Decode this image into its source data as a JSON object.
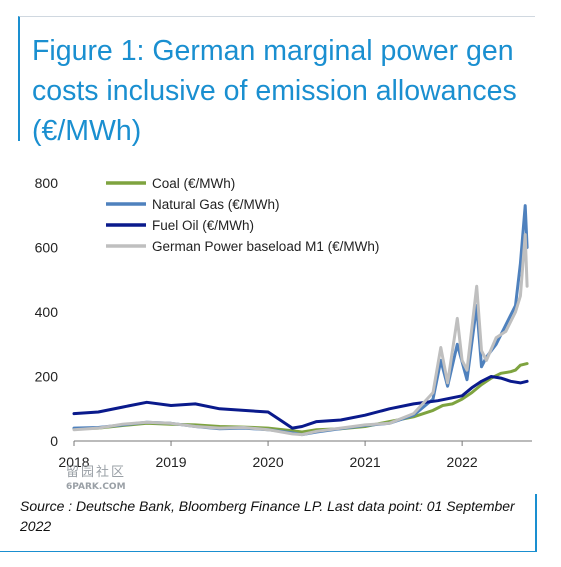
{
  "title": "Figure 1: German marginal power gen costs inclusive of emission allowances (€/MWh)",
  "source": "Source : Deutsche Bank, Bloomberg Finance LP. Last data point: 01 September 2022",
  "watermark": {
    "text": "留园社区",
    "sub": "6PARK.COM"
  },
  "colors": {
    "title": "#1a8fd0",
    "coal": "#7ea33f",
    "gas": "#4f81bd",
    "oil": "#0a1a8c",
    "power": "#bfbfbf"
  },
  "chart_data": {
    "type": "line",
    "title": "",
    "xlabel": "",
    "ylabel": "",
    "x_ticks": [
      "2018",
      "2019",
      "2020",
      "2021",
      "2022"
    ],
    "y_ticks": [
      "0",
      "200",
      "400",
      "600",
      "800"
    ],
    "xlim": [
      2018.0,
      2022.72
    ],
    "ylim": [
      0,
      800
    ],
    "grid": false,
    "legend_position": "top-left",
    "series": [
      {
        "name": "Coal (€/MWh)",
        "color": "#7ea33f",
        "x": [
          2018.0,
          2018.25,
          2018.5,
          2018.75,
          2019.0,
          2019.25,
          2019.5,
          2019.75,
          2020.0,
          2020.25,
          2020.35,
          2020.5,
          2020.75,
          2021.0,
          2021.25,
          2021.5,
          2021.7,
          2021.8,
          2021.9,
          2022.0,
          2022.1,
          2022.2,
          2022.3,
          2022.4,
          2022.5,
          2022.55,
          2022.6,
          2022.67
        ],
        "values": [
          38,
          40,
          48,
          55,
          52,
          50,
          45,
          43,
          40,
          32,
          28,
          35,
          38,
          45,
          60,
          75,
          95,
          110,
          115,
          130,
          150,
          175,
          195,
          210,
          215,
          220,
          235,
          240
        ]
      },
      {
        "name": "Natural Gas (€/MWh)",
        "color": "#4f81bd",
        "x": [
          2018.0,
          2018.25,
          2018.5,
          2018.75,
          2019.0,
          2019.25,
          2019.5,
          2019.75,
          2020.0,
          2020.25,
          2020.35,
          2020.5,
          2020.75,
          2021.0,
          2021.25,
          2021.5,
          2021.7,
          2021.78,
          2021.85,
          2021.95,
          2022.05,
          2022.15,
          2022.2,
          2022.25,
          2022.35,
          2022.45,
          2022.55,
          2022.6,
          2022.65,
          2022.67
        ],
        "values": [
          40,
          42,
          50,
          58,
          55,
          45,
          38,
          40,
          35,
          25,
          20,
          28,
          38,
          48,
          55,
          80,
          130,
          250,
          170,
          300,
          190,
          420,
          230,
          260,
          300,
          360,
          420,
          550,
          730,
          600
        ]
      },
      {
        "name": "Fuel Oil (€/MWh)",
        "color": "#0a1a8c",
        "x": [
          2018.0,
          2018.25,
          2018.5,
          2018.75,
          2019.0,
          2019.25,
          2019.5,
          2019.75,
          2020.0,
          2020.15,
          2020.25,
          2020.35,
          2020.5,
          2020.75,
          2021.0,
          2021.25,
          2021.5,
          2021.75,
          2022.0,
          2022.1,
          2022.2,
          2022.3,
          2022.4,
          2022.5,
          2022.6,
          2022.67
        ],
        "values": [
          85,
          90,
          105,
          120,
          110,
          115,
          100,
          95,
          90,
          60,
          40,
          45,
          60,
          65,
          80,
          100,
          115,
          125,
          140,
          165,
          185,
          200,
          195,
          185,
          180,
          185
        ]
      },
      {
        "name": "German Power baseload M1 (€/MWh)",
        "color": "#bfbfbf",
        "x": [
          2018.0,
          2018.25,
          2018.5,
          2018.75,
          2019.0,
          2019.25,
          2019.5,
          2019.75,
          2020.0,
          2020.25,
          2020.35,
          2020.5,
          2020.75,
          2021.0,
          2021.25,
          2021.5,
          2021.7,
          2021.78,
          2021.85,
          2021.95,
          2022.0,
          2022.05,
          2022.15,
          2022.2,
          2022.25,
          2022.35,
          2022.45,
          2022.55,
          2022.6,
          2022.65,
          2022.67
        ],
        "values": [
          35,
          40,
          52,
          58,
          55,
          45,
          40,
          42,
          35,
          22,
          20,
          30,
          40,
          50,
          55,
          85,
          150,
          290,
          180,
          380,
          250,
          220,
          480,
          280,
          250,
          320,
          340,
          400,
          450,
          640,
          480
        ]
      }
    ]
  }
}
